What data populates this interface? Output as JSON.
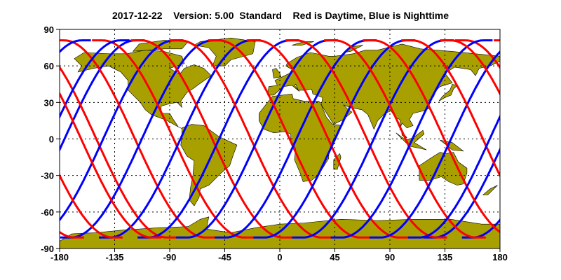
{
  "title": {
    "date": "2017-12-22",
    "version": "Version: 5.00",
    "product": "Standard",
    "legend_note": "Red is Daytime, Blue is Nighttime"
  },
  "axes": {
    "x_ticks": [
      "-180",
      "-135",
      "-90",
      "-45",
      "0",
      "45",
      "90",
      "135",
      "180"
    ],
    "y_ticks": [
      "90",
      "60",
      "30",
      "0",
      "-30",
      "-60",
      "-90"
    ],
    "x_range": [
      -180,
      180
    ],
    "y_range": [
      -90,
      90
    ],
    "grid": "dotted"
  },
  "colors": {
    "land": "#a8a000",
    "day_track": "#ff0000",
    "night_track": "#0000ff"
  }
}
